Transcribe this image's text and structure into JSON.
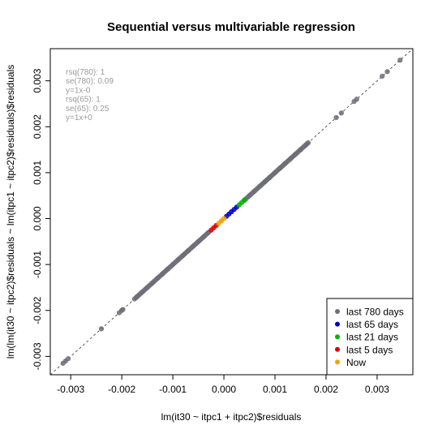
{
  "chart_data": {
    "type": "scatter",
    "title": "Sequential versus multivariable regression",
    "xlabel": "lm(it30 ~ itpc1 + itpc2)$residuals",
    "ylabel": "lm(lm(it30 ~ itpc2)$residuals ~ lm(itpc1 ~ itpc2)$residuals)$residuals",
    "xlim": [
      -0.0034,
      0.0037
    ],
    "ylim": [
      -0.0034,
      0.0037
    ],
    "x_ticks": [
      "-0.003",
      "-0.002",
      "-0.001",
      "0.000",
      "0.001",
      "0.002",
      "0.003"
    ],
    "y_ticks": [
      "-0.003",
      "-0.002",
      "-0.001",
      "0.000",
      "0.001",
      "0.002",
      "0.003"
    ],
    "grid": false,
    "reference_line": {
      "slope": 1,
      "intercept": 0,
      "style": "dashed"
    },
    "annotations": [
      "rsq(780): 1",
      "se(780): 0.09",
      "y=1x-0",
      "rsq(65): 1",
      "se(65): 0.25",
      "y=1x+0"
    ],
    "legend_position": "bottom-right",
    "series": [
      {
        "name": "last 780 days",
        "color": "#6e6e78",
        "points": [
          [
            -0.00315,
            -0.00315
          ],
          [
            -0.0031,
            -0.0031
          ],
          [
            -0.00305,
            -0.00305
          ],
          [
            -0.0024,
            -0.0024
          ],
          [
            -0.00205,
            -0.00205
          ],
          [
            -0.002,
            -0.002
          ],
          [
            -0.00198,
            -0.00198
          ],
          [
            -0.0017,
            -0.0017
          ],
          [
            -0.0016,
            -0.0016
          ],
          [
            -0.0015,
            -0.0015
          ],
          [
            -0.0014,
            -0.0014
          ],
          [
            -0.0013,
            -0.0013
          ],
          [
            -0.0012,
            -0.0012
          ],
          [
            -0.0011,
            -0.0011
          ],
          [
            -0.001,
            -0.001
          ],
          [
            -0.0009,
            -0.0009
          ],
          [
            -0.0008,
            -0.0008
          ],
          [
            -0.0007,
            -0.0007
          ],
          [
            -0.0006,
            -0.0006
          ],
          [
            -0.0005,
            -0.0005
          ],
          [
            -0.0004,
            -0.0004
          ],
          [
            -0.0003,
            -0.0003
          ],
          [
            0.0004,
            0.0004
          ],
          [
            0.0005,
            0.0005
          ],
          [
            0.0006,
            0.0006
          ],
          [
            0.0007,
            0.0007
          ],
          [
            0.0008,
            0.0008
          ],
          [
            0.0009,
            0.0009
          ],
          [
            0.001,
            0.001
          ],
          [
            0.0011,
            0.0011
          ],
          [
            0.0012,
            0.0012
          ],
          [
            0.0013,
            0.0013
          ],
          [
            0.0014,
            0.0014
          ],
          [
            0.0015,
            0.0015
          ],
          [
            0.0016,
            0.0016
          ],
          [
            0.00165,
            0.00165
          ],
          [
            0.0022,
            0.0022
          ],
          [
            0.0023,
            0.0023
          ],
          [
            0.00255,
            0.00255
          ],
          [
            0.0026,
            0.0026
          ],
          [
            0.0031,
            0.0031
          ],
          [
            0.0032,
            0.0032
          ],
          [
            0.00345,
            0.00345
          ]
        ],
        "dense_ranges": [
          [
            -0.00175,
            -0.0003
          ],
          [
            0.0004,
            0.00165
          ]
        ]
      },
      {
        "name": "last 65 days",
        "color": "#0000cc",
        "points": [
          [
            5e-05,
            5e-05
          ],
          [
            0.0001,
            0.0001
          ],
          [
            0.00015,
            0.00015
          ],
          [
            0.0002,
            0.0002
          ],
          [
            0.00025,
            0.00025
          ]
        ]
      },
      {
        "name": "last 21 days",
        "color": "#00b400",
        "points": [
          [
            0.0003,
            0.0003
          ],
          [
            0.00035,
            0.00035
          ],
          [
            0.0004,
            0.0004
          ]
        ]
      },
      {
        "name": "last 5 days",
        "color": "#dd0000",
        "points": [
          [
            -0.0002,
            -0.0002
          ],
          [
            -0.00025,
            -0.00025
          ],
          [
            -0.00015,
            -0.00015
          ]
        ]
      },
      {
        "name": "Now",
        "color": "#f0a500",
        "points": [
          [
            -0.0001,
            -0.0001
          ],
          [
            -5e-05,
            -5e-05
          ],
          [
            0.0,
            0.0
          ]
        ]
      }
    ]
  }
}
